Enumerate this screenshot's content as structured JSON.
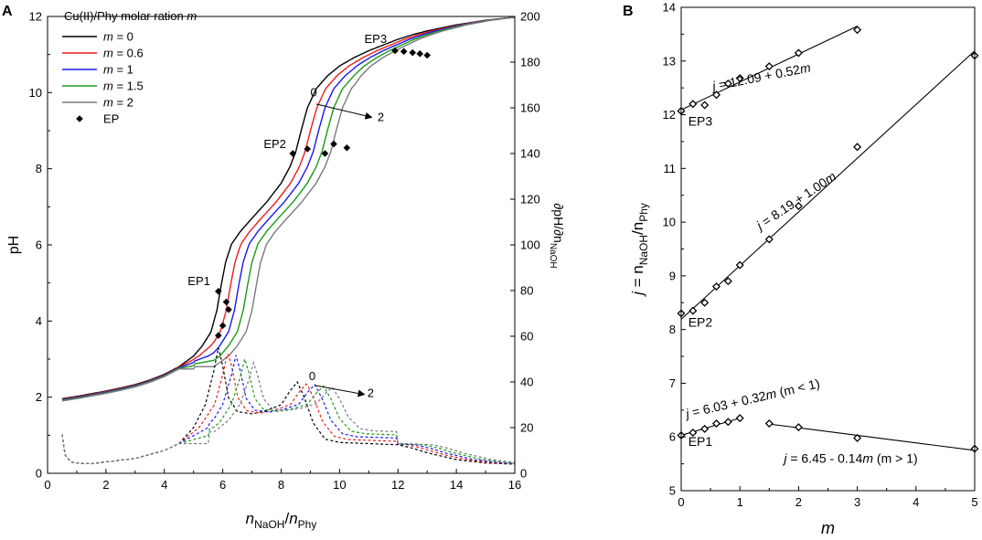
{
  "chart_data": [
    {
      "panel": "A",
      "type": "line",
      "xlabel": {
        "main": "n",
        "sub1": "NaOH",
        "sep": "/",
        "main2": "n",
        "sub2": "Phy"
      },
      "ylabel": "pH",
      "y2label": {
        "prefix": "∂pH/∂n",
        "sub": "NaOH"
      },
      "xlim": [
        0,
        16
      ],
      "ylim": [
        0,
        12
      ],
      "y2lim": [
        0,
        200
      ],
      "xticks": [
        0,
        2,
        4,
        6,
        8,
        10,
        12,
        14,
        16
      ],
      "yticks": [
        0,
        2,
        4,
        6,
        8,
        10,
        12
      ],
      "y2ticks": [
        0,
        20,
        40,
        60,
        80,
        100,
        120,
        140,
        160,
        180,
        200
      ],
      "legend": {
        "title_text": "Cu(II)/Phy molar ration ",
        "title_var": "m",
        "placement": "top-left",
        "entries": [
          {
            "var": "m",
            "text": " = 0",
            "color": "#000000"
          },
          {
            "var": "m",
            "text": " = 0.6",
            "color": "#ee1c1c"
          },
          {
            "var": "m",
            "text": " = 1",
            "color": "#1a1aee"
          },
          {
            "var": "m",
            "text": " = 1.5",
            "color": "#1a9a1a"
          },
          {
            "var": "m",
            "text": " = 2",
            "color": "#7a7a7a"
          },
          {
            "var": "",
            "text": "EP",
            "color": "#000000",
            "marker": "diamond"
          }
        ]
      },
      "series": [
        {
          "name": "m = 0",
          "color": "#000000",
          "shift": 0.0,
          "ph": [
            [
              0.5,
              1.96
            ],
            [
              1,
              2.02
            ],
            [
              1.5,
              2.09
            ],
            [
              2,
              2.16
            ],
            [
              2.5,
              2.24
            ],
            [
              3,
              2.33
            ],
            [
              3.5,
              2.45
            ],
            [
              4,
              2.6
            ],
            [
              4.5,
              2.8
            ],
            [
              5,
              3.08
            ],
            [
              5.3,
              3.35
            ],
            [
              5.6,
              3.72
            ],
            [
              5.8,
              4.28
            ],
            [
              5.95,
              4.95
            ],
            [
              6.1,
              5.55
            ],
            [
              6.3,
              6.02
            ],
            [
              6.6,
              6.35
            ],
            [
              7,
              6.7
            ],
            [
              7.5,
              7.12
            ],
            [
              8,
              7.62
            ],
            [
              8.3,
              8.05
            ],
            [
              8.5,
              8.45
            ],
            [
              8.7,
              9.05
            ],
            [
              8.9,
              9.6
            ],
            [
              9.2,
              10.1
            ],
            [
              9.6,
              10.45
            ],
            [
              10,
              10.7
            ],
            [
              10.5,
              10.92
            ],
            [
              11,
              11.1
            ],
            [
              11.5,
              11.25
            ],
            [
              12,
              11.4
            ],
            [
              12.5,
              11.52
            ],
            [
              13,
              11.62
            ],
            [
              14,
              11.78
            ],
            [
              15,
              11.9
            ],
            [
              16,
              11.98
            ]
          ],
          "deriv": [
            [
              0.5,
              17
            ],
            [
              0.6,
              8
            ],
            [
              0.8,
              5
            ],
            [
              1,
              4.5
            ],
            [
              1.5,
              4.2
            ],
            [
              2,
              5
            ],
            [
              3,
              6.5
            ],
            [
              4,
              10
            ],
            [
              4.5,
              13
            ],
            [
              5,
              20
            ],
            [
              5.4,
              30
            ],
            [
              5.7,
              45
            ],
            [
              5.85,
              55
            ],
            [
              6.0,
              47
            ],
            [
              6.2,
              33
            ],
            [
              6.5,
              27
            ],
            [
              7,
              26
            ],
            [
              7.5,
              27.5
            ],
            [
              8,
              30
            ],
            [
              8.3,
              36
            ],
            [
              8.55,
              40
            ],
            [
              8.8,
              33
            ],
            [
              9.1,
              22
            ],
            [
              9.5,
              15
            ],
            [
              10,
              13.5
            ],
            [
              11,
              13
            ],
            [
              12,
              12.5
            ],
            [
              12.5,
              11
            ],
            [
              13,
              9
            ],
            [
              14,
              6
            ],
            [
              15,
              4.5
            ],
            [
              16,
              4
            ]
          ]
        },
        {
          "name": "m = 0.6",
          "color": "#ee1c1c",
          "shift": 0.32
        },
        {
          "name": "m = 1",
          "color": "#1a1aee",
          "shift": 0.6
        },
        {
          "name": "m = 1.5",
          "color": "#1a9a1a",
          "shift": 0.9
        },
        {
          "name": "m = 2",
          "color": "#7a7a7a",
          "shift": 1.2
        }
      ],
      "ep_points": [
        [
          5.85,
          3.62
        ],
        [
          6.0,
          3.88
        ],
        [
          6.12,
          4.5
        ],
        [
          6.2,
          4.3
        ],
        [
          5.85,
          4.78
        ],
        [
          8.4,
          8.4
        ],
        [
          8.9,
          8.52
        ],
        [
          9.5,
          8.4
        ],
        [
          9.8,
          8.65
        ],
        [
          10.25,
          8.55
        ],
        [
          11.9,
          11.1
        ],
        [
          12.2,
          11.08
        ],
        [
          12.5,
          11.05
        ],
        [
          12.75,
          11.02
        ],
        [
          13.0,
          10.98
        ]
      ],
      "annotations": [
        {
          "text": "EP1",
          "x": 4.8,
          "y": 4.95
        },
        {
          "text": "EP2",
          "x": 7.4,
          "y": 8.55
        },
        {
          "text": "EP3",
          "x": 10.85,
          "y": 11.3
        },
        {
          "text": "0",
          "x": 9.0,
          "y": 9.9
        },
        {
          "text": "2",
          "x": 11.3,
          "y": 9.25
        },
        {
          "text": "0",
          "x": 8.95,
          "y": 2.45
        },
        {
          "text": "2",
          "x": 10.95,
          "y": 2.0
        }
      ],
      "arrows": [
        {
          "from": [
            9.2,
            9.7
          ],
          "to": [
            11.1,
            9.35
          ],
          "axis": "left"
        },
        {
          "from": [
            9.15,
            38.5
          ],
          "to": [
            10.85,
            34.5
          ],
          "axis": "right"
        }
      ]
    },
    {
      "panel": "B",
      "type": "scatter",
      "xlabel": "m",
      "ylabel": {
        "j": "j",
        "eq": " = n",
        "sub1": "NaOH",
        "sep": "/n",
        "sub2": "Phy"
      },
      "xlim": [
        0,
        5
      ],
      "ylim": [
        5,
        14
      ],
      "xticks": [
        0,
        1,
        2,
        3,
        4,
        5
      ],
      "yticks": [
        5,
        6,
        7,
        8,
        9,
        10,
        11,
        12,
        13,
        14
      ],
      "series": [
        {
          "name": "EP3",
          "points": [
            [
              0,
              12.07
            ],
            [
              0.2,
              12.2
            ],
            [
              0.4,
              12.18
            ],
            [
              0.6,
              12.37
            ],
            [
              0.8,
              12.58
            ],
            [
              1,
              12.68
            ],
            [
              1.5,
              12.9
            ],
            [
              2,
              13.15
            ],
            [
              3,
              13.58
            ]
          ],
          "fit": {
            "x": [
              0,
              3
            ],
            "intercept": 12.09,
            "slope": 0.52
          }
        },
        {
          "name": "EP2",
          "points": [
            [
              0,
              8.3
            ],
            [
              0.2,
              8.35
            ],
            [
              0.4,
              8.5
            ],
            [
              0.6,
              8.8
            ],
            [
              0.8,
              8.9
            ],
            [
              1,
              9.2
            ],
            [
              1.5,
              9.68
            ],
            [
              2,
              10.3
            ],
            [
              3,
              11.4
            ],
            [
              5,
              13.1
            ]
          ],
          "fit": {
            "x": [
              0,
              5
            ],
            "intercept": 8.19,
            "slope": 1.0
          }
        },
        {
          "name": "EP1 (m<1)",
          "points": [
            [
              0,
              6.03
            ],
            [
              0.2,
              6.08
            ],
            [
              0.4,
              6.15
            ],
            [
              0.6,
              6.25
            ],
            [
              0.8,
              6.28
            ],
            [
              1,
              6.35
            ]
          ],
          "fit": {
            "x": [
              0,
              1
            ],
            "intercept": 6.03,
            "slope": 0.32
          }
        },
        {
          "name": "EP1 (m>1)",
          "points": [
            [
              1.5,
              6.25
            ],
            [
              2,
              6.18
            ],
            [
              3,
              5.98
            ],
            [
              5,
              5.78
            ]
          ],
          "fit": {
            "x": [
              1.5,
              5
            ],
            "intercept": 6.45,
            "slope": -0.14
          }
        }
      ],
      "labels": [
        {
          "text": "EP3",
          "x": 0.12,
          "y": 11.8
        },
        {
          "text": "EP2",
          "x": 0.12,
          "y": 8.05
        },
        {
          "text": "EP1",
          "x": 0.12,
          "y": 5.83
        }
      ],
      "equations": [
        {
          "j": "j",
          "body": " = 12.09 + 0.52",
          "m": "m",
          "tail": "",
          "x": 0.55,
          "y": 12.45,
          "rotate": -11
        },
        {
          "j": "j",
          "body": " = 8.19 + 1.00",
          "m": "m",
          "tail": "",
          "x": 1.35,
          "y": 9.85,
          "rotate": -34
        },
        {
          "j": "j",
          "body": " = 6.03 + 0.32",
          "m": "m",
          "tail": " (m < 1)",
          "x": 0.1,
          "y": 6.35,
          "rotate": -13
        },
        {
          "j": "j",
          "body": " = 6.45 - 0.14",
          "m": "m",
          "tail": " (m > 1)",
          "x": 1.75,
          "y": 5.52,
          "rotate": 0
        }
      ]
    }
  ],
  "panel_labels": {
    "a": "A",
    "b": "B"
  }
}
